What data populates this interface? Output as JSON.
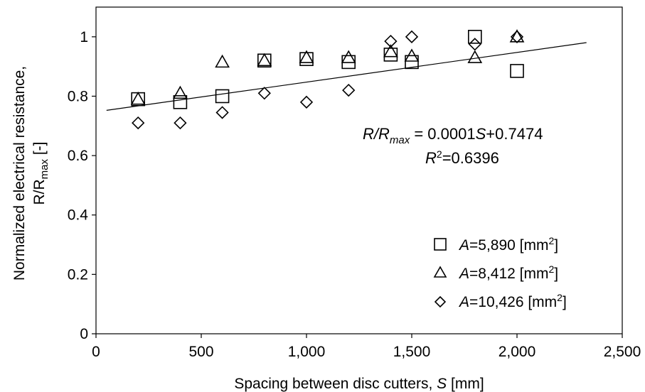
{
  "chart_data": {
    "type": "scatter",
    "title": "",
    "xlabel": {
      "text": "Spacing between disc cutters, ",
      "var": "S",
      "unit": " [mm]"
    },
    "ylabel": {
      "line1": "Normalized electrical resistance,",
      "line2_base": "R/R",
      "line2_sub": "max",
      "line2_unit": " [-]"
    },
    "xlim": [
      0,
      2500
    ],
    "ylim": [
      0,
      1.1
    ],
    "xticks": [
      0,
      500,
      1000,
      1500,
      2000,
      2500
    ],
    "xtick_labels": [
      "0",
      "500",
      "1,000",
      "1,500",
      "2,000",
      "2,500"
    ],
    "yticks": [
      0,
      0.2,
      0.4,
      0.6,
      0.8,
      1
    ],
    "ytick_labels": [
      "0",
      "0.2",
      "0.4",
      "0.6",
      "0.8",
      "1"
    ],
    "grid": false,
    "legend_position": "bottom-right",
    "series": [
      {
        "name": {
          "var": "A",
          "text": "=5,890 [mm",
          "sup": "2",
          "close": "]"
        },
        "marker": "square",
        "x": [
          200,
          400,
          600,
          800,
          1000,
          1200,
          1400,
          1500,
          1800,
          2000
        ],
        "y": [
          0.79,
          0.78,
          0.8,
          0.92,
          0.925,
          0.915,
          0.94,
          0.915,
          1.0,
          0.885
        ]
      },
      {
        "name": {
          "var": "A",
          "text": "=8,412 [mm",
          "sup": "2",
          "close": "]"
        },
        "marker": "triangle",
        "x": [
          200,
          400,
          600,
          800,
          1000,
          1200,
          1400,
          1500,
          1800,
          2000
        ],
        "y": [
          0.79,
          0.81,
          0.915,
          0.92,
          0.93,
          0.93,
          0.95,
          0.935,
          0.93,
          1.0
        ]
      },
      {
        "name": {
          "var": "A",
          "text": "=10,426 [mm",
          "sup": "2",
          "close": "]"
        },
        "marker": "diamond",
        "x": [
          200,
          400,
          600,
          800,
          1000,
          1200,
          1400,
          1500,
          1800,
          2000
        ],
        "y": [
          0.71,
          0.71,
          0.745,
          0.81,
          0.78,
          0.82,
          0.985,
          1.0,
          0.975,
          1.0
        ]
      }
    ],
    "trendline": {
      "slope": 0.0001,
      "intercept": 0.7474,
      "x_range": [
        50,
        2330
      ]
    },
    "annotation": {
      "eq_lhs_base": "R/R",
      "eq_lhs_sub": "max",
      "eq_rhs_prefix": " = 0.0001",
      "eq_var": "S",
      "eq_rhs_suffix": "+0.7474",
      "r2_base": "R",
      "r2_sup": "2",
      "r2_value": "=0.6396"
    }
  }
}
